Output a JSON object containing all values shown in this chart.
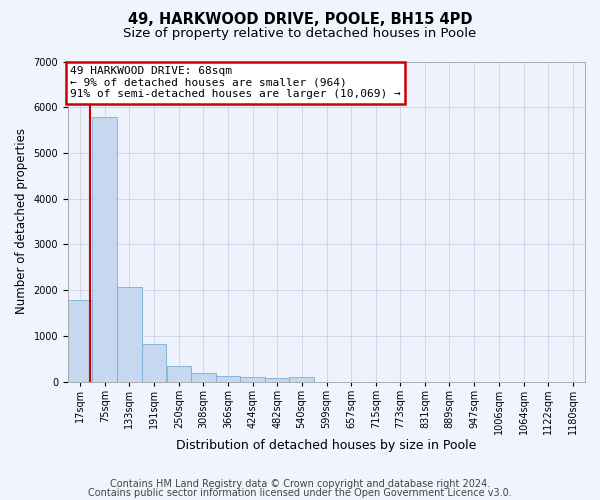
{
  "title1": "49, HARKWOOD DRIVE, POOLE, BH15 4PD",
  "title2": "Size of property relative to detached houses in Poole",
  "xlabel": "Distribution of detached houses by size in Poole",
  "ylabel": "Number of detached properties",
  "bar_labels": [
    "17sqm",
    "75sqm",
    "133sqm",
    "191sqm",
    "250sqm",
    "308sqm",
    "366sqm",
    "424sqm",
    "482sqm",
    "540sqm",
    "599sqm",
    "657sqm",
    "715sqm",
    "773sqm",
    "831sqm",
    "889sqm",
    "947sqm",
    "1006sqm",
    "1064sqm",
    "1122sqm",
    "1180sqm"
  ],
  "bar_values": [
    1780,
    5780,
    2060,
    830,
    340,
    185,
    115,
    100,
    85,
    95,
    0,
    0,
    0,
    0,
    0,
    0,
    0,
    0,
    0,
    0,
    0
  ],
  "bar_color": "#c5d8f0",
  "bar_edge_color": "#7aadd4",
  "vline_color": "#cc0000",
  "vline_x": 68,
  "annotation_line1": "49 HARKWOOD DRIVE: 68sqm",
  "annotation_line2": "← 9% of detached houses are smaller (964)",
  "annotation_line3": "91% of semi-detached houses are larger (10,069) →",
  "annotation_box_color": "#ffffff",
  "annotation_box_edge": "#cc0000",
  "ylim": [
    0,
    7000
  ],
  "yticks": [
    0,
    1000,
    2000,
    3000,
    4000,
    5000,
    6000,
    7000
  ],
  "footer1": "Contains HM Land Registry data © Crown copyright and database right 2024.",
  "footer2": "Contains public sector information licensed under the Open Government Licence v3.0.",
  "bg_color": "#f0f4fc",
  "plot_bg_color": "#edf2fc",
  "title1_fontsize": 10.5,
  "title2_fontsize": 9.5,
  "xlabel_fontsize": 9,
  "ylabel_fontsize": 8.5,
  "tick_fontsize": 7,
  "annot_fontsize": 8,
  "footer_fontsize": 7,
  "bin_edges": [
    17,
    75,
    133,
    191,
    250,
    308,
    366,
    424,
    482,
    540,
    599,
    657,
    715,
    773,
    831,
    889,
    947,
    1006,
    1064,
    1122,
    1180
  ],
  "bin_width": 58
}
